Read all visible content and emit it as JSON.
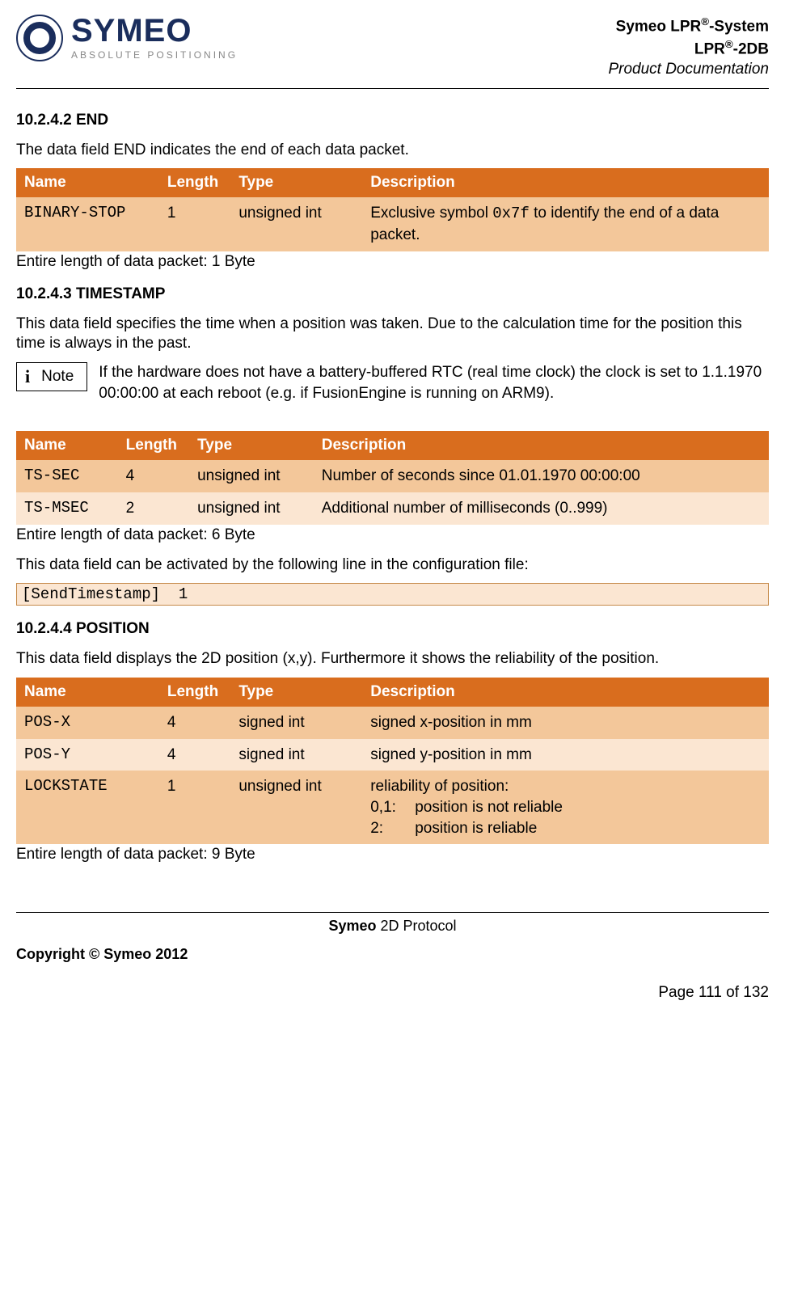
{
  "header": {
    "brand": "SYMEO",
    "tagline": "ABSOLUTE POSITIONING",
    "line1_html": "Symeo LPR<sup>®</sup>-System",
    "line2_html": "LPR<sup>®</sup>-2DB",
    "line3": "Product Documentation"
  },
  "colors": {
    "table_header_bg": "#d96d1e",
    "row_dark_bg": "#f3c79a",
    "row_light_bg": "#fbe6d2",
    "logo_color": "#1a2d5c"
  },
  "section_end": {
    "heading": "10.2.4.2 END",
    "intro": "The data field END indicates the end of each data packet.",
    "entire": "Entire length of data packet: 1 Byte",
    "columns": [
      "Name",
      "Length",
      "Type",
      "Description"
    ],
    "col_widths": [
      "19%",
      "9.5%",
      "17.5%",
      "54%"
    ],
    "rows": [
      {
        "name": "BINARY-STOP",
        "length": "1",
        "type": "unsigned int",
        "desc_html": "Exclusive symbol <span class=\"mono\">0x7f</span> to identify the end of a data packet."
      }
    ]
  },
  "section_ts": {
    "heading": "10.2.4.3 TIMESTAMP",
    "intro": "This data field specifies the time when a position was taken. Due to the calculation time for the position this time is always in the past.",
    "note_label": "Note",
    "note_text": "If the hardware does not have a battery-buffered RTC (real time clock) the clock is set to 1.1.1970 00:00:00 at each reboot (e.g. if FusionEngine is running on ARM9).",
    "columns": [
      "Name",
      "Length",
      "Type",
      "Description"
    ],
    "col_widths": [
      "13.5%",
      "9.5%",
      "16.5%",
      "60.5%"
    ],
    "rows": [
      {
        "name": "TS-SEC",
        "length": "4",
        "type": "unsigned int",
        "desc": "Number of seconds since 01.01.1970 00:00:00"
      },
      {
        "name": "TS-MSEC",
        "length": "2",
        "type": "unsigned int",
        "desc": "Additional number of milliseconds (0..999)"
      }
    ],
    "entire": "Entire length of data packet: 6 Byte",
    "activation_text": "This data field can be activated by the following line in the configuration file:",
    "activation_code": "[SendTimestamp]  1"
  },
  "section_pos": {
    "heading": "10.2.4.4 POSITION",
    "intro": "This data field displays the 2D position (x,y). Furthermore it shows the reliability of the position.",
    "columns": [
      "Name",
      "Length",
      "Type",
      "Description"
    ],
    "col_widths": [
      "19%",
      "9.5%",
      "17.5%",
      "54%"
    ],
    "rows": [
      {
        "name": "POS-X",
        "length": "4",
        "type": "signed int",
        "desc": "signed x-position in mm"
      },
      {
        "name": "POS-Y",
        "length": "4",
        "type": "signed int",
        "desc": "signed y-position in mm"
      },
      {
        "name": "LOCKSTATE",
        "length": "1",
        "type": "unsigned int",
        "desc_multi": {
          "lead": "reliability of position:",
          "items": [
            {
              "k": "0,1:",
              "v": "position is not reliable"
            },
            {
              "k": "2:",
              "v": "position is reliable"
            }
          ]
        }
      }
    ],
    "entire": "Entire length of data packet: 9 Byte"
  },
  "footer": {
    "center_bold": "Symeo",
    "center_rest": " 2D Protocol",
    "copyright": "Copyright © Symeo 2012",
    "page": "Page 111 of 132"
  }
}
